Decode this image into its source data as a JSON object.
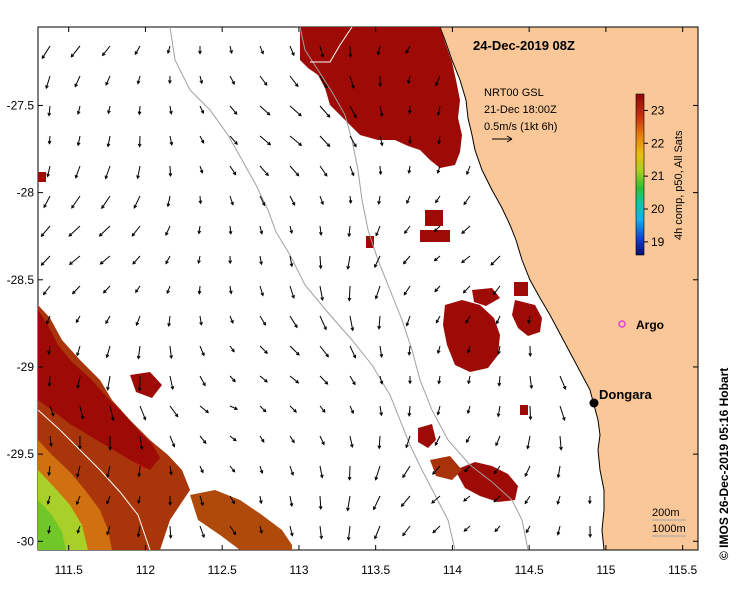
{
  "map": {
    "title": "24-Dec-2019 08Z",
    "credit": "© IMOS 26-Dec-2019 05:16 Hobart",
    "lon_ticks": [
      "111.5",
      "112",
      "112.5",
      "113",
      "113.5",
      "114",
      "114.5",
      "115",
      "115.5"
    ],
    "lat_ticks": [
      "-27.5",
      "-28",
      "-28.5",
      "-29",
      "-29.5",
      "-30"
    ],
    "lon_range": [
      111.3,
      115.6
    ],
    "lat_range": [
      -30.05,
      -27.05
    ],
    "current_note": {
      "line1": "NRT00 GSL",
      "line2": "21-Dec 18:00Z",
      "line3": "0.5m/s (1kt 6h)"
    },
    "colorbar": {
      "ticks": [
        "23",
        "22",
        "21",
        "20",
        "19"
      ],
      "label": "4h comp, p50, All Sats",
      "min": 18.6,
      "max": 23.5
    },
    "places": {
      "argo": "Argo",
      "dongara": "Dongara"
    },
    "depth_legend": {
      "shallow": "200m",
      "deep": "1000m"
    },
    "colors": {
      "land": "#fac898",
      "sst_hot": "#9e0a05",
      "background": "#ffffff",
      "argo": "#e040e0"
    }
  }
}
